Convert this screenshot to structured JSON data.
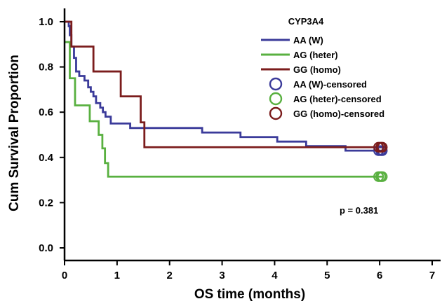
{
  "chart_data": {
    "type": "line",
    "subtype": "kaplan-meier",
    "xlabel": "OS time (months)",
    "ylabel": "Cum Survival Proportion",
    "xlim": [
      0,
      7
    ],
    "ylim": [
      0,
      1
    ],
    "x_ticks": [
      "0",
      "1",
      "2",
      "3",
      "4",
      "5",
      "6",
      "7"
    ],
    "y_ticks": [
      "0.0",
      "0.2",
      "0.4",
      "0.6",
      "0.8",
      "1.0"
    ],
    "legend_title": "CYP3A4",
    "legend_position": "top-right",
    "annotation": "p = 0.381",
    "grid": false,
    "series": [
      {
        "name": "AA (W)",
        "color": "#3b3b9a",
        "steps": [
          [
            0,
            1.0
          ],
          [
            0.08,
            0.98
          ],
          [
            0.1,
            0.94
          ],
          [
            0.13,
            0.89
          ],
          [
            0.18,
            0.84
          ],
          [
            0.22,
            0.78
          ],
          [
            0.28,
            0.76
          ],
          [
            0.38,
            0.74
          ],
          [
            0.45,
            0.71
          ],
          [
            0.5,
            0.69
          ],
          [
            0.55,
            0.67
          ],
          [
            0.6,
            0.64
          ],
          [
            0.68,
            0.62
          ],
          [
            0.73,
            0.6
          ],
          [
            0.78,
            0.58
          ],
          [
            0.88,
            0.55
          ],
          [
            1.25,
            0.53
          ],
          [
            2.62,
            0.51
          ],
          [
            3.35,
            0.49
          ],
          [
            4.05,
            0.47
          ],
          [
            4.6,
            0.45
          ],
          [
            5.35,
            0.43
          ],
          [
            6.05,
            0.43
          ]
        ]
      },
      {
        "name": "AG (heter)",
        "color": "#59b040",
        "steps": [
          [
            0,
            0.91
          ],
          [
            0.08,
            0.91
          ],
          [
            0.1,
            0.75
          ],
          [
            0.2,
            0.63
          ],
          [
            0.48,
            0.56
          ],
          [
            0.65,
            0.5
          ],
          [
            0.72,
            0.44
          ],
          [
            0.77,
            0.375
          ],
          [
            0.83,
            0.315
          ],
          [
            6.05,
            0.315
          ]
        ]
      },
      {
        "name": "GG (homo)",
        "color": "#7b1c1c",
        "steps": [
          [
            0,
            1.0
          ],
          [
            0.08,
            1.0
          ],
          [
            0.13,
            0.89
          ],
          [
            0.55,
            0.78
          ],
          [
            1.07,
            0.67
          ],
          [
            1.45,
            0.555
          ],
          [
            1.52,
            0.445
          ],
          [
            6.05,
            0.445
          ]
        ]
      }
    ],
    "censored": [
      {
        "name": "AA (W)-censored",
        "color": "#3b3b9a",
        "points": [
          [
            5.98,
            0.43
          ],
          [
            6.02,
            0.43
          ],
          [
            6.05,
            0.43
          ]
        ]
      },
      {
        "name": "AG (heter)-censored",
        "color": "#59b040",
        "points": [
          [
            5.98,
            0.315
          ],
          [
            6.02,
            0.315
          ],
          [
            6.05,
            0.315
          ]
        ]
      },
      {
        "name": "GG (homo)-censored",
        "color": "#7b1c1c",
        "points": [
          [
            5.98,
            0.445
          ],
          [
            6.02,
            0.445
          ],
          [
            6.05,
            0.445
          ]
        ]
      }
    ]
  }
}
